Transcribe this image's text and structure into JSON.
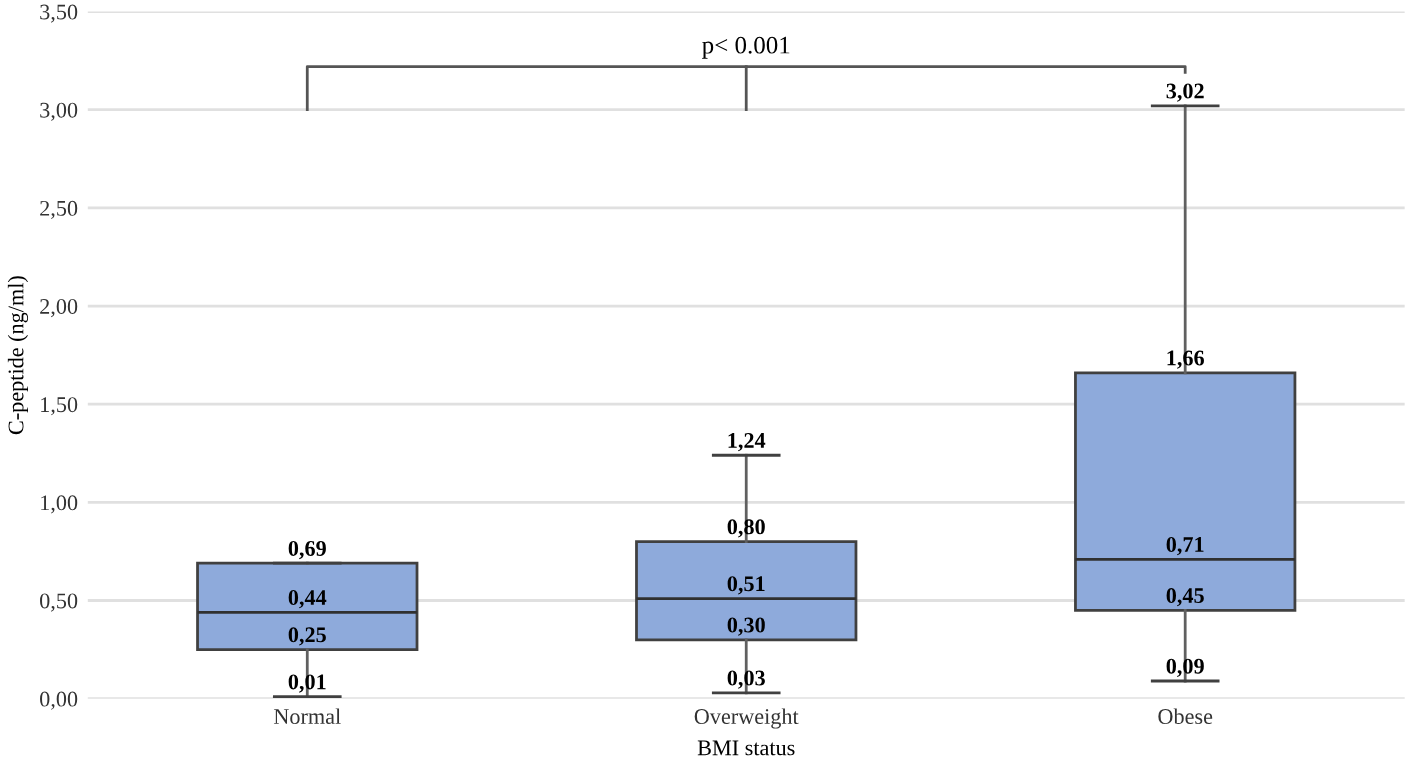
{
  "chart_data": {
    "type": "box",
    "xlabel": "BMI status",
    "ylabel": "C-peptide (ng/ml)",
    "categories": [
      "Normal",
      "Overweight",
      "Obese"
    ],
    "series": [
      {
        "color": "#8eaadb",
        "boxes": [
          {
            "low": 0.01,
            "q1": 0.25,
            "median": 0.44,
            "q3": 0.69,
            "high": 0.69
          },
          {
            "low": 0.03,
            "q1": 0.3,
            "median": 0.51,
            "q3": 0.8,
            "high": 1.24
          },
          {
            "low": 0.09,
            "q1": 0.45,
            "median": 0.71,
            "q3": 1.66,
            "high": 3.02
          }
        ]
      }
    ],
    "ylim": [
      0,
      3.5
    ],
    "yticks": [
      {
        "value": 0,
        "label": "0,00"
      },
      {
        "value": 0.5,
        "label": "0,50"
      },
      {
        "value": 1,
        "label": "1,00"
      },
      {
        "value": 1.5,
        "label": "1,50"
      },
      {
        "value": 2,
        "label": "2,00"
      },
      {
        "value": 2.5,
        "label": "2,50"
      },
      {
        "value": 3,
        "label": "3,00"
      },
      {
        "value": 3.5,
        "label": "3,50"
      }
    ],
    "grid": "y",
    "annotations": [
      {
        "text": "0,69",
        "x": "Normal",
        "y": 0.69
      },
      {
        "text": "0,44",
        "x": "Normal",
        "y": 0.44
      },
      {
        "text": "0,25",
        "x": "Normal",
        "y": 0.25
      },
      {
        "text": "0,01",
        "x": "Normal",
        "y": 0.01
      },
      {
        "text": "1,24",
        "x": "Overweight",
        "y": 1.24
      },
      {
        "text": "0,80",
        "x": "Overweight",
        "y": 0.8
      },
      {
        "text": "0,51",
        "x": "Overweight",
        "y": 0.51
      },
      {
        "text": "0,30",
        "x": "Overweight",
        "y": 0.3
      },
      {
        "text": "0,03",
        "x": "Overweight",
        "y": 0.03
      },
      {
        "text": "3,02",
        "x": "Obese",
        "y": 3.02
      },
      {
        "text": "1,66",
        "x": "Obese",
        "y": 1.66
      },
      {
        "text": "0,71",
        "x": "Obese",
        "y": 0.71
      },
      {
        "text": "0,45",
        "x": "Obese",
        "y": 0.45
      },
      {
        "text": "0,09",
        "x": "Obese",
        "y": 0.09
      },
      "p< 0.001"
    ]
  }
}
